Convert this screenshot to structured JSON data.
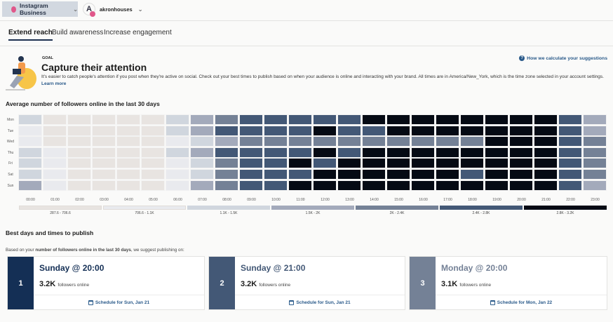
{
  "topbar": {
    "account_label": "Instagram Business",
    "profile_initial": "A",
    "profile_name": "akronhouses"
  },
  "tabs": [
    "Extend reach",
    "Build awareness",
    "Increase engagement"
  ],
  "goal": {
    "eyebrow": "GOAL",
    "title": "Capture their attention",
    "description": "It's easier to catch people's attention if you post when they're active on social. Check out your best times to publish based on when your audience is online and interacting with your brand. All times are in America/New_York, which is the time zone selected in your account settings.",
    "learn_more": "Learn more",
    "how_link": "How we calculate your suggestions"
  },
  "chart_data": {
    "type": "heatmap",
    "title": "Average number of followers online in the last 30 days",
    "rows": [
      "Mon",
      "Tue",
      "Wed",
      "Thu",
      "Fri",
      "Sat",
      "Sun"
    ],
    "columns": [
      "00:00",
      "01:00",
      "02:00",
      "03:00",
      "04:00",
      "05:00",
      "06:00",
      "07:00",
      "08:00",
      "09:00",
      "10:00",
      "11:00",
      "12:00",
      "13:00",
      "14:00",
      "15:00",
      "16:00",
      "17:00",
      "18:00",
      "19:00",
      "20:00",
      "21:00",
      "22:00",
      "23:00"
    ],
    "legend": [
      {
        "label": "287.6 - 706.6",
        "color": "#e8e4e1"
      },
      {
        "label": "706.6 - 1.1K",
        "color": "#e9eaee"
      },
      {
        "label": "1.1K - 1.5K",
        "color": "#d0d6de"
      },
      {
        "label": "1.5K - 2K",
        "color": "#a3aabb"
      },
      {
        "label": "2K - 2.4K",
        "color": "#748196"
      },
      {
        "label": "2.4K - 2.8K",
        "color": "#435876"
      },
      {
        "label": "2.8K - 3.2K",
        "color": "#050a14"
      }
    ],
    "bucket_index": [
      [
        2,
        0,
        0,
        0,
        0,
        0,
        2,
        3,
        4,
        5,
        5,
        5,
        5,
        5,
        6,
        6,
        6,
        6,
        6,
        6,
        6,
        6,
        5,
        3
      ],
      [
        1,
        0,
        0,
        0,
        0,
        0,
        2,
        3,
        5,
        5,
        5,
        5,
        6,
        5,
        5,
        6,
        6,
        6,
        6,
        6,
        6,
        6,
        5,
        3
      ],
      [
        1,
        0,
        0,
        0,
        0,
        0,
        1,
        2,
        3,
        4,
        4,
        4,
        4,
        4,
        4,
        4,
        4,
        4,
        4,
        6,
        6,
        6,
        5,
        4
      ],
      [
        2,
        1,
        0,
        0,
        0,
        0,
        2,
        3,
        5,
        5,
        5,
        5,
        6,
        5,
        6,
        6,
        6,
        6,
        6,
        6,
        6,
        6,
        5,
        4
      ],
      [
        2,
        1,
        0,
        0,
        0,
        0,
        1,
        2,
        4,
        5,
        5,
        6,
        5,
        6,
        6,
        6,
        6,
        6,
        6,
        6,
        6,
        6,
        5,
        4
      ],
      [
        2,
        1,
        0,
        0,
        0,
        0,
        1,
        2,
        4,
        5,
        5,
        5,
        6,
        6,
        6,
        6,
        6,
        6,
        5,
        6,
        6,
        6,
        5,
        4
      ],
      [
        3,
        1,
        0,
        0,
        0,
        0,
        1,
        3,
        4,
        5,
        5,
        6,
        6,
        6,
        6,
        6,
        6,
        6,
        6,
        6,
        6,
        6,
        5,
        3
      ]
    ]
  },
  "best": {
    "title": "Best days and times to publish",
    "subtitle_pre": "Based on your ",
    "subtitle_bold": "number of followers online in the last 30 days",
    "subtitle_post": ", we suggest publishing on:",
    "followers_suffix": "followers online",
    "cards": [
      {
        "rank": "1",
        "title": "Sunday @ 20:00",
        "value": "3.2K",
        "schedule": "Schedule for Sun, Jan 21",
        "color": "#142f55"
      },
      {
        "rank": "2",
        "title": "Sunday @ 21:00",
        "value": "3.2K",
        "schedule": "Schedule for Sun, Jan 21",
        "color": "#435876"
      },
      {
        "rank": "3",
        "title": "Monday @ 20:00",
        "value": "3.1K",
        "schedule": "Schedule for Mon, Jan 22",
        "color": "#748196"
      }
    ]
  }
}
